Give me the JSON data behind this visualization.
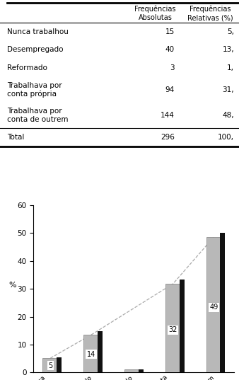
{
  "table": {
    "rows": [
      [
        "Nunca trabalhou",
        "15",
        "5,"
      ],
      [
        "Desempregado",
        "40",
        "13,"
      ],
      [
        "Reformado",
        "3",
        "1,"
      ],
      [
        "Trabalhava por\nconta própria",
        "94",
        "31,"
      ],
      [
        "Trabalhava por\nconta de outrem",
        "144",
        "48,"
      ],
      [
        "Total",
        "296",
        "100,"
      ]
    ],
    "header1": "Frequências\nAbsolutas",
    "header2": "Frequências\nRelativas (%)"
  },
  "chart": {
    "categories": [
      "Nunca\ntrabalhou",
      "Desempregado",
      "Reformado",
      "Trab. conta\nprópria",
      "Trab. conta outrem"
    ],
    "values_gray": [
      5.1,
      13.5,
      1.0,
      31.8,
      48.6
    ],
    "values_dark": [
      5.4,
      14.9,
      1.1,
      33.4,
      50.0
    ],
    "bar_color_gray": "#b8b8b8",
    "bar_color_dark": "#111111",
    "ylabel": "%",
    "ylim": [
      0,
      60
    ],
    "yticks": [
      0,
      10,
      20,
      30,
      40,
      50,
      60
    ],
    "labeled_indices": [
      0,
      1,
      3,
      4
    ],
    "labels": [
      "5",
      "14",
      "32",
      "49"
    ],
    "line_color": "#aaaaaa",
    "line_style": "--"
  }
}
